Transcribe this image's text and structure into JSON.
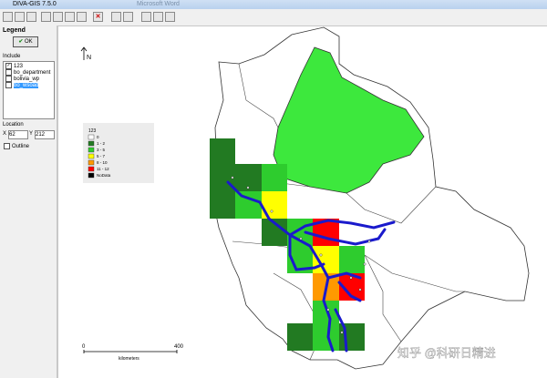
{
  "window": {
    "title": "DIVA-GIS 7.5.0",
    "background_title": "Microsoft Word"
  },
  "legend_panel": {
    "title": "Legend",
    "ok": "OK",
    "include": "Include",
    "layers": [
      "123",
      "bo_department",
      "bolivia_wp",
      "bo_wsoad"
    ],
    "location": "Location",
    "x_label": "X",
    "x_value": "62",
    "y_label": "Y",
    "y_value": "212",
    "outline": "Outline"
  },
  "map": {
    "north": "N",
    "legend": {
      "title": "123",
      "classes": [
        "0",
        "1 - 2",
        "3 - 5",
        "5 - 7",
        "8 - 10",
        "11 - 12",
        "NoData"
      ]
    },
    "scale": {
      "start": "0",
      "end": "400",
      "unit": "kilometers"
    }
  },
  "watermark": "知乎 @科研日精进"
}
